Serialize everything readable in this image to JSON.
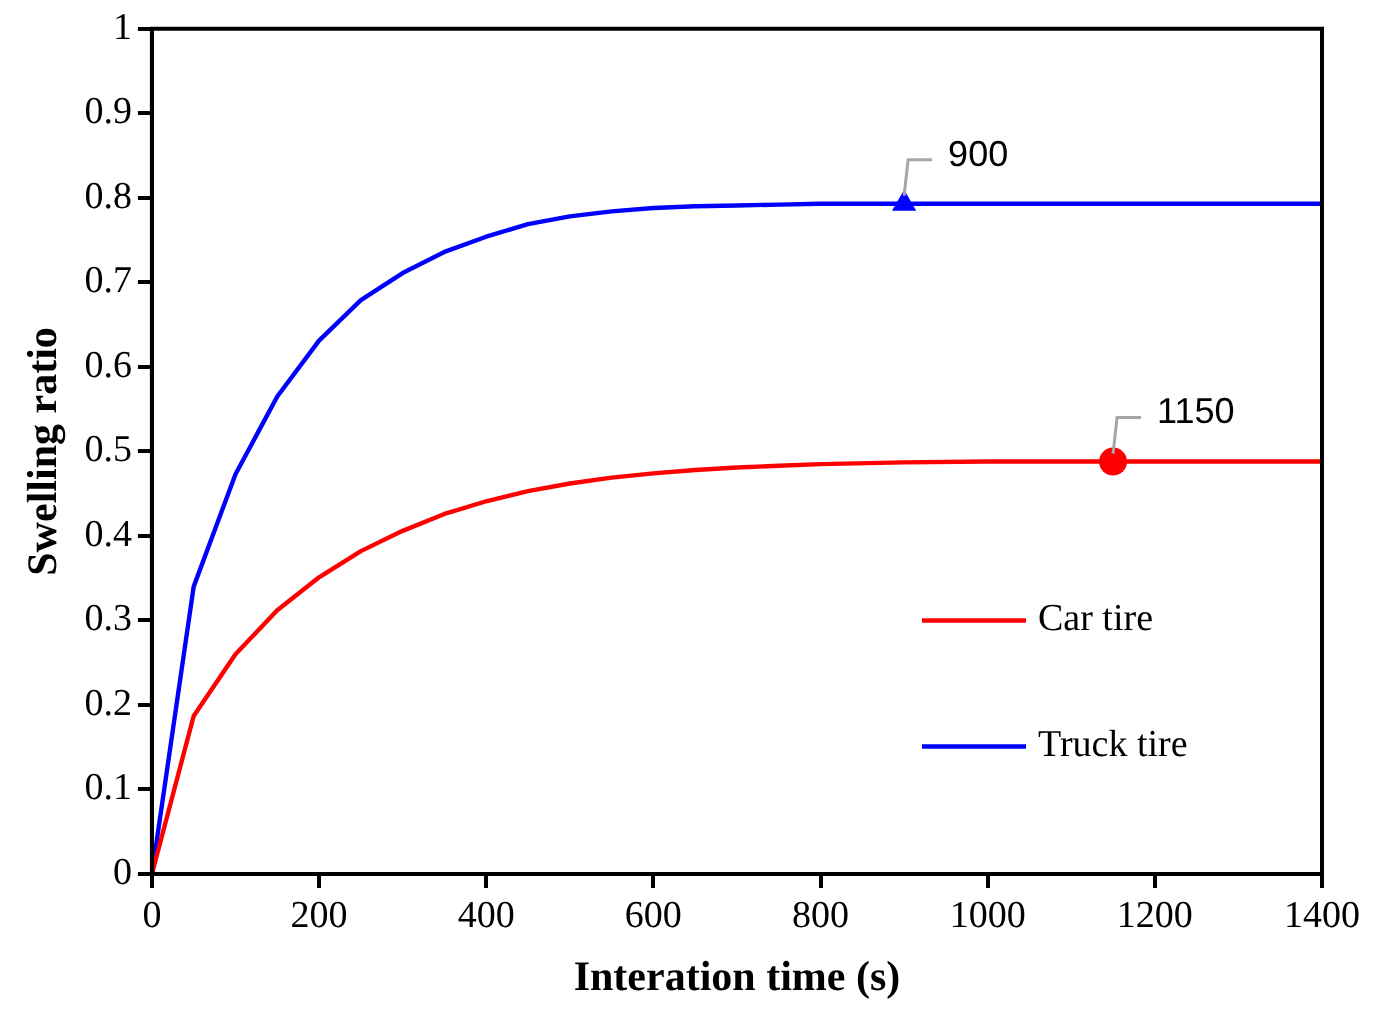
{
  "chart_data": {
    "type": "line",
    "xlabel": "Interation time (s)",
    "ylabel": "Swelling ratio",
    "x": [
      0,
      50,
      100,
      150,
      200,
      250,
      300,
      350,
      400,
      450,
      500,
      550,
      600,
      650,
      700,
      750,
      800,
      900,
      1000,
      1100,
      1200,
      1300,
      1400
    ],
    "series": [
      {
        "name": "Car tire",
        "color": "#ff0000",
        "values": [
          0,
          0.187,
          0.26,
          0.312,
          0.351,
          0.382,
          0.406,
          0.426,
          0.441,
          0.453,
          0.462,
          0.469,
          0.474,
          0.478,
          0.481,
          0.483,
          0.485,
          0.487,
          0.488,
          0.488,
          0.488,
          0.488,
          0.488
        ]
      },
      {
        "name": "Truck tire",
        "color": "#0000ff",
        "values": [
          0,
          0.34,
          0.473,
          0.565,
          0.631,
          0.679,
          0.711,
          0.736,
          0.754,
          0.769,
          0.778,
          0.784,
          0.788,
          0.79,
          0.791,
          0.792,
          0.793,
          0.793,
          0.793,
          0.793,
          0.793,
          0.793,
          0.793
        ]
      },
      {
        "type": "scatter",
        "marker": "triangle",
        "color": "#0000ff",
        "x": [
          900
        ],
        "values": [
          0.793
        ]
      },
      {
        "type": "scatter",
        "marker": "circle",
        "color": "#ff0000",
        "x": [
          1150
        ],
        "values": [
          0.488
        ]
      }
    ],
    "annotations": [
      {
        "text": "900",
        "x": 900,
        "y": 0.793
      },
      {
        "text": "1150",
        "x": 1150,
        "y": 0.488
      }
    ],
    "xlim": [
      0,
      1400
    ],
    "xticks": [
      0,
      200,
      400,
      600,
      800,
      1000,
      1200,
      1400
    ],
    "ylim": [
      0,
      1
    ],
    "yticks": [
      0,
      0.1,
      0.2,
      0.3,
      0.4,
      0.5,
      0.6,
      0.7,
      0.8,
      0.9,
      1
    ],
    "legend": "right",
    "grid": false,
    "marker": "none"
  }
}
